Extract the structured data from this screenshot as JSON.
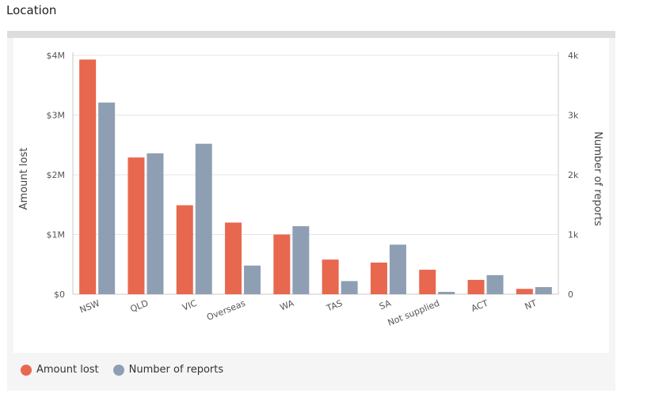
{
  "section": {
    "title": "Location"
  },
  "colors": {
    "amount": "#e8674f",
    "reports": "#8e9fb3",
    "grid": "#e6e6e6",
    "axis": "#c8c8c8",
    "text": "#555555"
  },
  "legend": {
    "amount_label": "Amount lost",
    "reports_label": "Number of reports"
  },
  "chart_data": {
    "type": "bar",
    "title": "",
    "categories": [
      "NSW",
      "QLD",
      "VIC",
      "Overseas",
      "WA",
      "TAS",
      "SA",
      "Not supplied",
      "ACT",
      "NT"
    ],
    "series": [
      {
        "name": "Amount lost",
        "axis": "left",
        "values": [
          3930000,
          2290000,
          1490000,
          1200000,
          1000000,
          580000,
          530000,
          410000,
          240000,
          90000
        ]
      },
      {
        "name": "Number of reports",
        "axis": "right",
        "values": [
          3210,
          2360,
          2520,
          480,
          1140,
          220,
          830,
          40,
          320,
          120
        ]
      }
    ],
    "y_left": {
      "label": "Amount lost",
      "range": [
        0,
        4000000
      ],
      "ticks": [
        0,
        1000000,
        2000000,
        3000000,
        4000000
      ],
      "tick_labels": [
        "$0",
        "$1M",
        "$2M",
        "$3M",
        "$4M"
      ]
    },
    "y_right": {
      "label": "Number of reports",
      "range": [
        0,
        4000
      ],
      "ticks": [
        0,
        1000,
        2000,
        3000,
        4000
      ],
      "tick_labels": [
        "0",
        "1k",
        "2k",
        "3k",
        "4k"
      ]
    },
    "grid": true,
    "legend_position": "bottom-left"
  }
}
